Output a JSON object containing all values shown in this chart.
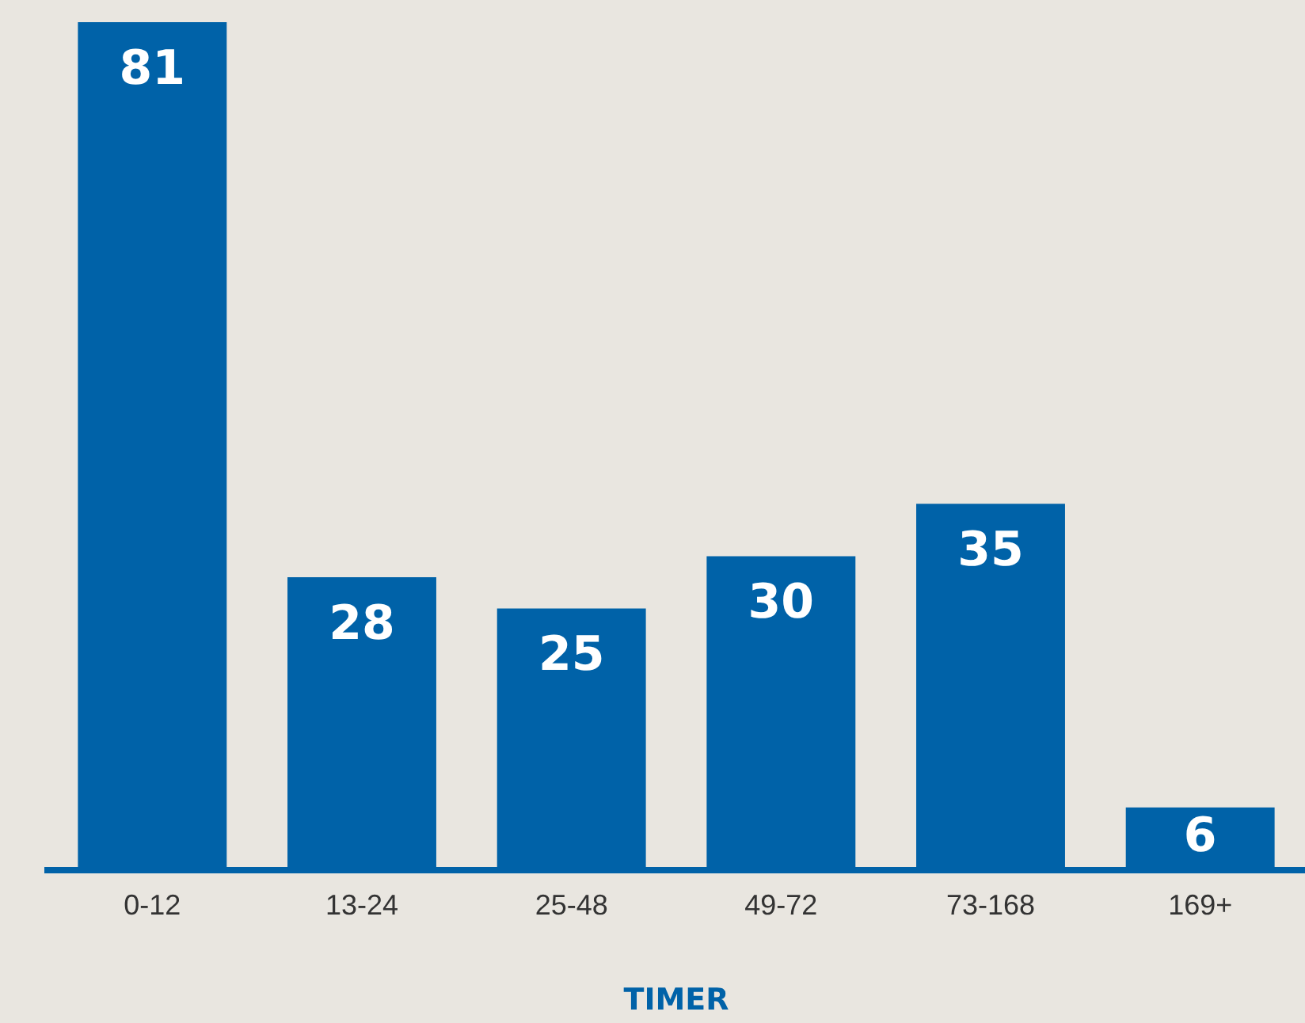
{
  "chart_data": {
    "type": "bar",
    "xlabel": "TIMER",
    "categories": [
      "0-12",
      "13-24",
      "25-48",
      "49-72",
      "73-168",
      "169+"
    ],
    "values": [
      81,
      28,
      25,
      30,
      35,
      6
    ],
    "color": "#0062a8",
    "tick_labels": "x",
    "data_labels": true,
    "grid": false,
    "legend": false
  }
}
